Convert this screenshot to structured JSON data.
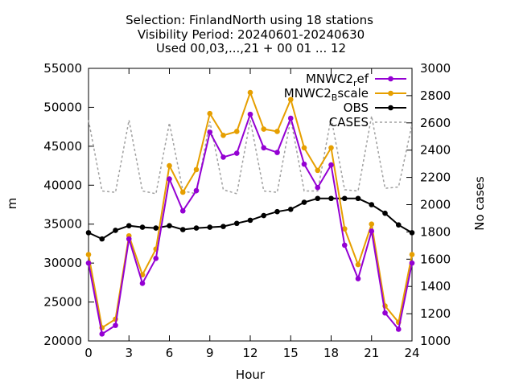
{
  "chart_data": {
    "type": "line",
    "title_lines": [
      "Selection: FinlandNorth using    18 stations",
      "Visibility   Period: 20240601-20240630",
      "Used 00,03,...,21 + 00 01 ... 12"
    ],
    "xlabel": "Hour",
    "ylabel": "m",
    "y2label": "No cases",
    "xlim": [
      0,
      24
    ],
    "ylim": [
      20000,
      55000
    ],
    "y2lim": [
      1000,
      3000
    ],
    "x_ticks": [
      0,
      3,
      6,
      9,
      12,
      15,
      18,
      21,
      24
    ],
    "y_ticks": [
      20000,
      25000,
      30000,
      35000,
      40000,
      45000,
      50000,
      55000
    ],
    "y2_ticks": [
      1000,
      1200,
      1400,
      1600,
      1800,
      2000,
      2200,
      2400,
      2600,
      2800,
      3000
    ],
    "legend_position": "top-right",
    "grid": false,
    "x": [
      0,
      1,
      2,
      3,
      4,
      5,
      6,
      7,
      8,
      9,
      10,
      11,
      12,
      13,
      14,
      15,
      16,
      17,
      18,
      19,
      20,
      21,
      22,
      23,
      24
    ],
    "series": [
      {
        "name": "MNWC2_ref",
        "legend_main": "MNWC2",
        "legend_sub": "r",
        "legend_tail": "ef",
        "color": "#9400d3",
        "axis": "y1",
        "style": "solid",
        "values": [
          30000,
          20900,
          22000,
          33100,
          27400,
          30600,
          40800,
          36700,
          39300,
          46800,
          43600,
          44100,
          49100,
          44800,
          44200,
          48600,
          42700,
          39700,
          42600,
          32300,
          28000,
          34100,
          23600,
          21500,
          30000
        ]
      },
      {
        "name": "MNWC2_Bscale",
        "legend_main": "MNWC2",
        "legend_sub": "B",
        "legend_tail": "scale",
        "color": "#e69f00",
        "axis": "y1",
        "style": "solid",
        "values": [
          31100,
          21700,
          22800,
          33500,
          28500,
          31800,
          42500,
          39100,
          42000,
          49200,
          46400,
          46900,
          51900,
          47200,
          46900,
          51000,
          44800,
          41900,
          44800,
          34400,
          29800,
          35000,
          24500,
          22400,
          31100
        ]
      },
      {
        "name": "OBS",
        "color": "#000000",
        "axis": "y1",
        "style": "solid",
        "values": [
          33900,
          33100,
          34200,
          34800,
          34600,
          34500,
          34800,
          34300,
          34500,
          34600,
          34700,
          35100,
          35500,
          36100,
          36600,
          36900,
          37800,
          38300,
          38300,
          38300,
          38300,
          37500,
          36400,
          34900,
          33900
        ]
      },
      {
        "name": "CASES",
        "color": "#a0a0a0",
        "axis": "y2",
        "style": "dashed",
        "values": [
          2620,
          2100,
          2090,
          2620,
          2100,
          2080,
          2600,
          2100,
          2080,
          2610,
          2110,
          2080,
          2620,
          2100,
          2090,
          2630,
          2100,
          2100,
          2640,
          2110,
          2100,
          2650,
          2120,
          2130,
          2590
        ]
      }
    ]
  }
}
